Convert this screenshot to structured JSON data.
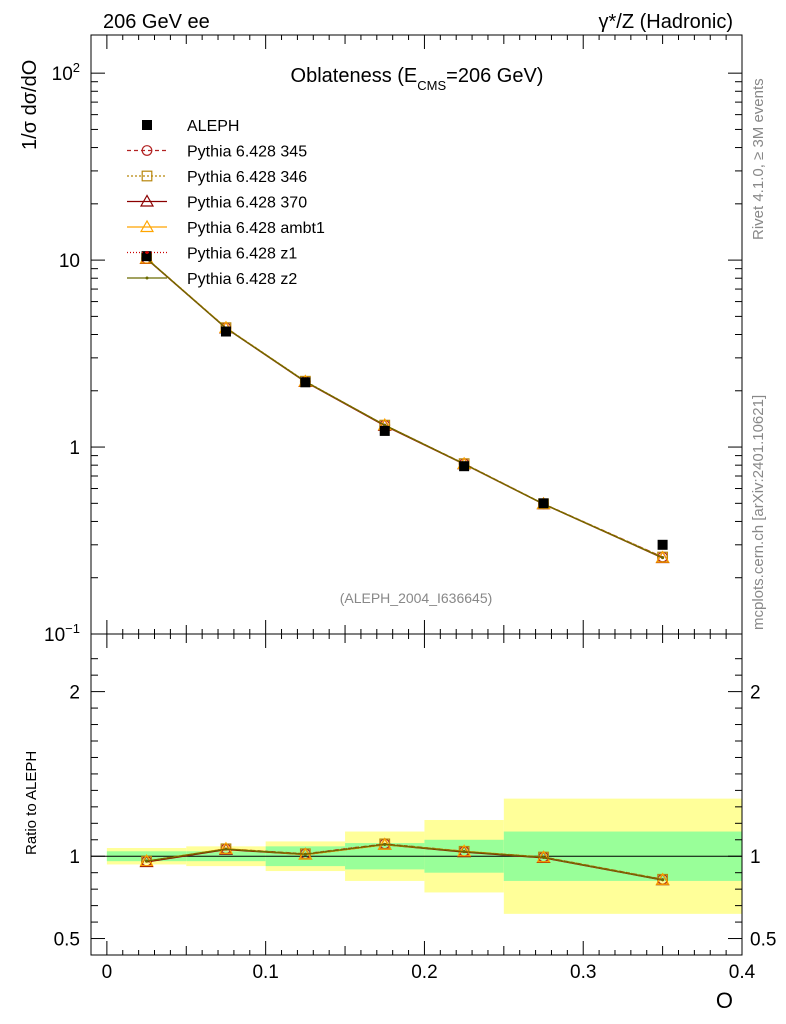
{
  "header": {
    "left": "206 GeV ee",
    "right": "γ*/Z (Hadronic)"
  },
  "side": {
    "rivet": "Rivet 4.1.0, ≥ 3M events",
    "mcplots": "mcplots.cern.ch [arXiv:2401.10621]"
  },
  "colors": {
    "band_inner": "#99ff99",
    "band_outer": "#ffff99",
    "data": "#000000"
  },
  "chart_data": {
    "type": "line",
    "title": "Oblateness (E_CMS=206 GeV)",
    "title_main": "Oblateness (E",
    "title_sub": "CMS",
    "title_end": "=206 GeV)",
    "analysis_id": "(ALEPH_2004_I636645)",
    "xlabel": "O",
    "ylabel": "1/σ  dσ/dO",
    "ratio_ylabel": "Ratio to ALEPH",
    "xlim": [
      -0.01,
      0.4
    ],
    "ylim": [
      0.1,
      160
    ],
    "ratio_ylim": [
      0.4,
      2.35
    ],
    "x_ticks": [
      "0",
      "0.1",
      "0.2",
      "0.3",
      "0.4"
    ],
    "y_ticks": [
      "10",
      "1"
    ],
    "ratio_ticks": [
      "2",
      "1",
      "0.5"
    ],
    "bin_edges": [
      0,
      0.05,
      0.1,
      0.15,
      0.2,
      0.25,
      0.4
    ],
    "x": [
      0.025,
      0.075,
      0.125,
      0.175,
      0.225,
      0.275,
      0.35
    ],
    "data": {
      "name": "ALEPH",
      "values": [
        10.5,
        4.15,
        2.22,
        1.22,
        0.79,
        0.5,
        0.3
      ],
      "inner_err": [
        0.03,
        0.03,
        0.06,
        0.08,
        0.1,
        0.15,
        0.15
      ],
      "outer_err": [
        0.05,
        0.06,
        0.09,
        0.15,
        0.22,
        0.35,
        0.35
      ]
    },
    "series": [
      {
        "name": "Pythia 6.428 345",
        "color": "#b22222",
        "dash": "4,3",
        "marker": "circle",
        "values": [
          10.2,
          4.35,
          2.24,
          1.31,
          0.815,
          0.497,
          0.258
        ],
        "ratio": [
          0.97,
          1.045,
          1.015,
          1.075,
          1.03,
          0.995,
          0.86
        ]
      },
      {
        "name": "Pythia 6.428 346",
        "color": "#b8860b",
        "dash": "2,2",
        "marker": "square",
        "values": [
          10.2,
          4.35,
          2.25,
          1.31,
          0.815,
          0.497,
          0.258
        ],
        "ratio": [
          0.97,
          1.045,
          1.015,
          1.075,
          1.03,
          0.995,
          0.86
        ]
      },
      {
        "name": "Pythia 6.428 370",
        "color": "#8b0000",
        "dash": "",
        "marker": "triangle",
        "values": [
          10.15,
          4.32,
          2.23,
          1.3,
          0.81,
          0.495,
          0.255
        ],
        "ratio": [
          0.965,
          1.04,
          1.01,
          1.07,
          1.025,
          0.99,
          0.855
        ]
      },
      {
        "name": "Pythia 6.428 ambt1",
        "color": "#ffa500",
        "dash": "",
        "marker": "triangle",
        "values": [
          10.2,
          4.34,
          2.24,
          1.31,
          0.812,
          0.496,
          0.256
        ],
        "ratio": [
          0.97,
          1.045,
          1.01,
          1.07,
          1.03,
          0.993,
          0.857
        ]
      },
      {
        "name": "Pythia 6.428 z1",
        "color": "#cc0000",
        "dash": "1,2",
        "marker": "dot",
        "values": [
          10.2,
          4.33,
          2.24,
          1.31,
          0.812,
          0.496,
          0.256
        ],
        "ratio": [
          0.97,
          1.043,
          1.012,
          1.072,
          1.028,
          0.993,
          0.857
        ]
      },
      {
        "name": "Pythia 6.428 z2",
        "color": "#6b6b00",
        "dash": "",
        "marker": "dot",
        "values": [
          10.2,
          4.33,
          2.24,
          1.31,
          0.812,
          0.496,
          0.256
        ],
        "ratio": [
          0.97,
          1.043,
          1.012,
          1.072,
          1.028,
          0.993,
          0.857
        ]
      }
    ]
  }
}
